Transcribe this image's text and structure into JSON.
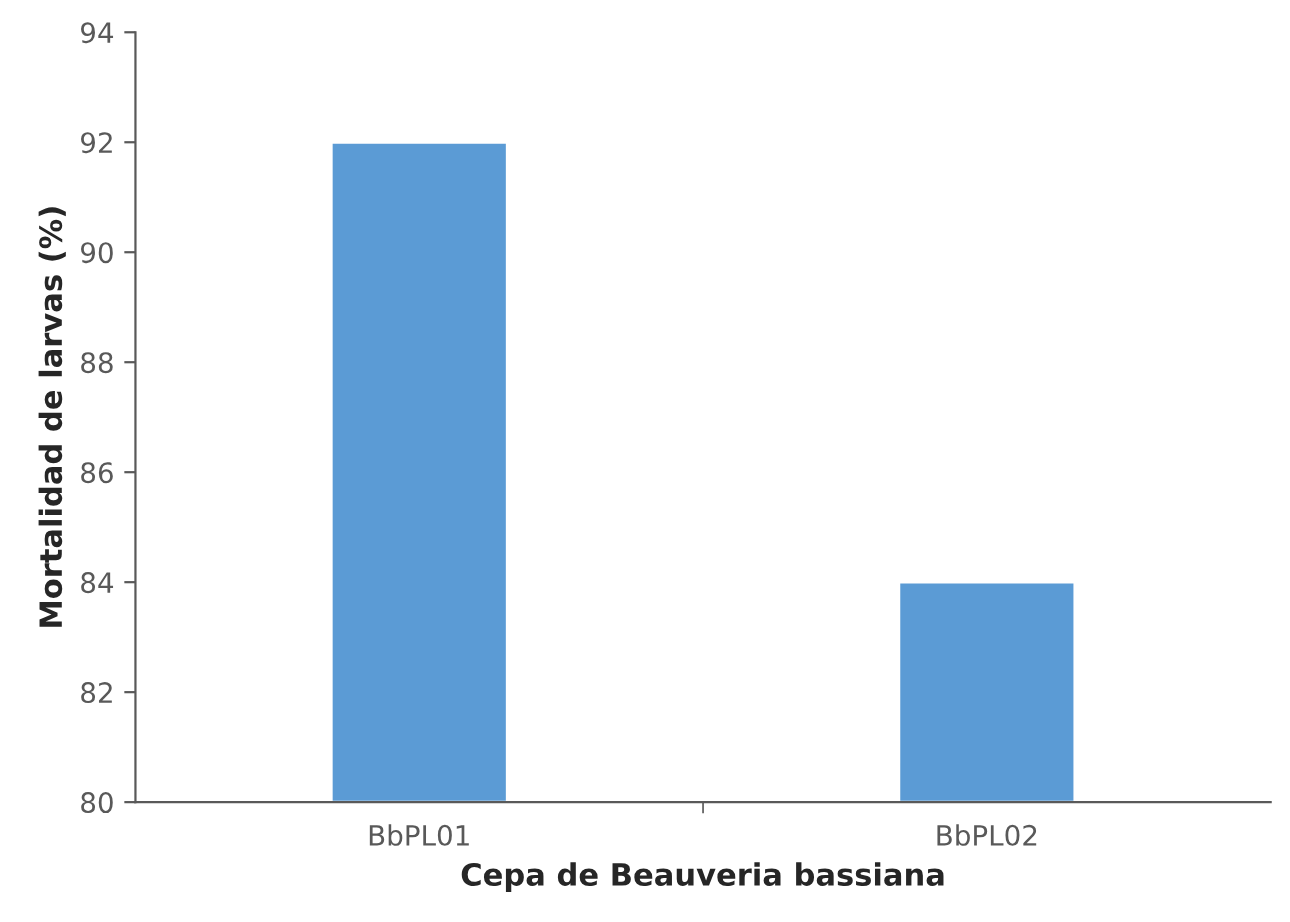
{
  "chart_data": {
    "type": "bar",
    "categories": [
      "BbPL01",
      "BbPL02"
    ],
    "values": [
      92,
      84
    ],
    "color": "#5b9bd5",
    "xlabel": "Cepa de Beauveria bassiana",
    "ylabel": "Mortalidad de larvas (%)",
    "ylim": [
      80,
      94
    ],
    "yticks": [
      80,
      82,
      84,
      86,
      88,
      90,
      92,
      94
    ],
    "grid": false,
    "legend": false
  }
}
